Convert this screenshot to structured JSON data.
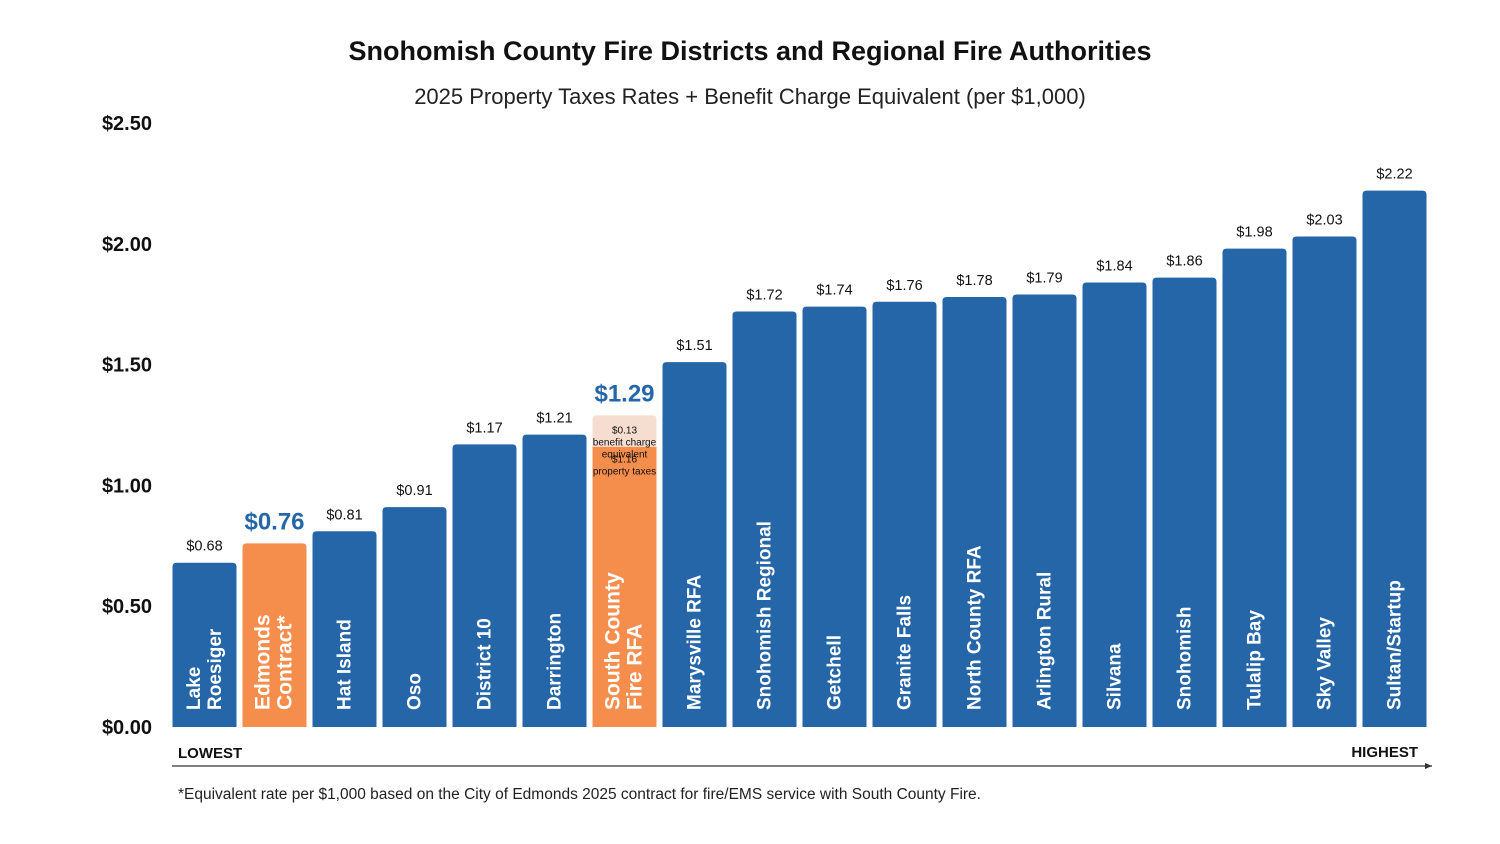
{
  "chart_data": {
    "type": "bar",
    "title": "Snohomish County Fire Districts and Regional Fire Authorities",
    "subtitle": "2025 Property Taxes Rates + Benefit Charge Equivalent (per $1,000)",
    "ylim": [
      0,
      2.5
    ],
    "yticks": [
      0,
      0.5,
      1.0,
      1.5,
      2.0,
      2.5
    ],
    "ytick_labels": [
      "$0.00",
      "$0.50",
      "$1.00",
      "$1.50",
      "$2.00",
      "$2.50"
    ],
    "xlabel_left": "LOWEST",
    "xlabel_right": "HIGHEST",
    "colors": {
      "standard": "#2566a8",
      "highlight": "#f58d4c",
      "benefit_segment": "#f5ddd0",
      "highlight_label": "#2566a8"
    },
    "categories": [
      {
        "name": [
          "Lake",
          "Roesiger"
        ],
        "value": 0.68,
        "label": "$0.68",
        "highlight": false
      },
      {
        "name": [
          "Edmonds",
          "Contract*"
        ],
        "value": 0.76,
        "label": "$0.76",
        "highlight": true
      },
      {
        "name": [
          "Hat Island"
        ],
        "value": 0.81,
        "label": "$0.81",
        "highlight": false
      },
      {
        "name": [
          "Oso"
        ],
        "value": 0.91,
        "label": "$0.91",
        "highlight": false
      },
      {
        "name": [
          "District 10"
        ],
        "value": 1.17,
        "label": "$1.17",
        "highlight": false
      },
      {
        "name": [
          "Darrington"
        ],
        "value": 1.21,
        "label": "$1.21",
        "highlight": false
      },
      {
        "name": [
          "South County",
          "Fire RFA"
        ],
        "value": 1.29,
        "label": "$1.29",
        "highlight": true,
        "segments": [
          {
            "value": 1.16,
            "label_lines": [
              "$1.16",
              "property taxes"
            ]
          },
          {
            "value": 0.13,
            "label_lines": [
              "$0.13",
              "benefit charge",
              "equivalent"
            ]
          }
        ]
      },
      {
        "name": [
          "Marysville RFA"
        ],
        "value": 1.51,
        "label": "$1.51",
        "highlight": false
      },
      {
        "name": [
          "Snohomish Regional"
        ],
        "value": 1.72,
        "label": "$1.72",
        "highlight": false
      },
      {
        "name": [
          "Getchell"
        ],
        "value": 1.74,
        "label": "$1.74",
        "highlight": false
      },
      {
        "name": [
          "Granite Falls"
        ],
        "value": 1.76,
        "label": "$1.76",
        "highlight": false
      },
      {
        "name": [
          "North County RFA"
        ],
        "value": 1.78,
        "label": "$1.78",
        "highlight": false
      },
      {
        "name": [
          "Arlington Rural"
        ],
        "value": 1.79,
        "label": "$1.79",
        "highlight": false
      },
      {
        "name": [
          "Silvana"
        ],
        "value": 1.84,
        "label": "$1.84",
        "highlight": false
      },
      {
        "name": [
          "Snohomish"
        ],
        "value": 1.86,
        "label": "$1.86",
        "highlight": false
      },
      {
        "name": [
          "Tulalip Bay"
        ],
        "value": 1.98,
        "label": "$1.98",
        "highlight": false
      },
      {
        "name": [
          "Sky Valley"
        ],
        "value": 2.03,
        "label": "$2.03",
        "highlight": false
      },
      {
        "name": [
          "Sultan/Startup"
        ],
        "value": 2.22,
        "label": "$2.22",
        "highlight": false
      }
    ]
  },
  "footnote": "*Equivalent rate per $1,000 based on the City of Edmonds 2025 contract for fire/EMS service with South County Fire."
}
